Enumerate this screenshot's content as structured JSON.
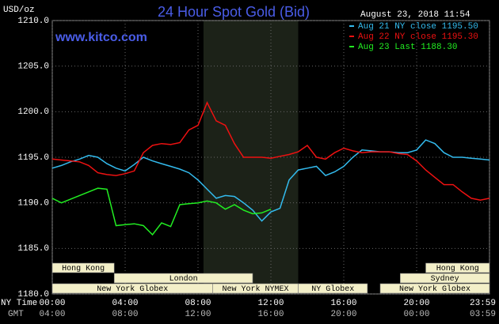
{
  "chart_data": {
    "type": "line",
    "title": "24 Hour Spot Gold (Bid)",
    "source": "www.kitco.com",
    "timestamp": "August 23, 2018 11:54",
    "y_label": "USD/oz",
    "x_label": "NY Time",
    "x2_label": "GMT",
    "x": [
      0,
      0.5,
      1,
      1.5,
      2,
      2.5,
      3,
      3.5,
      4,
      4.5,
      5,
      5.5,
      6,
      6.5,
      7,
      7.5,
      8,
      8.5,
      9,
      9.5,
      10,
      10.5,
      11,
      11.5,
      12,
      12.5,
      13,
      13.5,
      14,
      14.5,
      15,
      15.5,
      16,
      16.5,
      17,
      17.5,
      18,
      18.5,
      19,
      19.5,
      20,
      20.5,
      21,
      21.5,
      22,
      22.5,
      23,
      23.5,
      24
    ],
    "xlim": [
      0,
      24
    ],
    "xticks": [
      {
        "value": 0,
        "label": "00:00"
      },
      {
        "value": 4,
        "label": "04:00"
      },
      {
        "value": 8,
        "label": "08:00"
      },
      {
        "value": 12,
        "label": "12:00"
      },
      {
        "value": 16,
        "label": "16:00"
      },
      {
        "value": 20,
        "label": "20:00"
      },
      {
        "value": 24,
        "label": "23:59"
      }
    ],
    "x2ticks": [
      {
        "value": 0,
        "label": "04:00"
      },
      {
        "value": 4,
        "label": "08:00"
      },
      {
        "value": 8,
        "label": "12:00"
      },
      {
        "value": 12,
        "label": "16:00"
      },
      {
        "value": 16,
        "label": "20:00"
      },
      {
        "value": 20,
        "label": "00:00"
      },
      {
        "value": 24,
        "label": "03:59"
      }
    ],
    "ylim": [
      1180,
      1210
    ],
    "yticks": [
      {
        "value": 1180,
        "label": "1180.0"
      },
      {
        "value": 1185,
        "label": "1185.0"
      },
      {
        "value": 1190,
        "label": "1190.0"
      },
      {
        "value": 1195,
        "label": "1195.0"
      },
      {
        "value": 1200,
        "label": "1200.0"
      },
      {
        "value": 1205,
        "label": "1205.0"
      },
      {
        "value": 1210,
        "label": "1210.0"
      }
    ],
    "grid": true,
    "highlight": [
      8.3,
      13.5
    ],
    "sessions": [
      {
        "label": "Hong Kong",
        "start": 0,
        "end": 3.4
      },
      {
        "label": "London",
        "start": 3.4,
        "end": 11
      },
      {
        "label": "New York Globex",
        "start": 0,
        "end": 8.8
      },
      {
        "label": "New York NYMEX",
        "start": 8.8,
        "end": 13.5
      },
      {
        "label": "NY Globex",
        "start": 13.5,
        "end": 17.3
      },
      {
        "label": "Hong Kong",
        "start": 20.5,
        "end": 24
      },
      {
        "label": "Sydney",
        "start": 19.1,
        "end": 24
      },
      {
        "label": "New York Globex",
        "start": 18,
        "end": 24
      }
    ],
    "series": [
      {
        "name": "Aug 21 NY close 1195.50",
        "color": "#33bbee",
        "values": [
          1193.8,
          1194.1,
          1194.5,
          1194.8,
          1195.2,
          1195,
          1194.3,
          1193.8,
          1193.5,
          1194.2,
          1195,
          1194.6,
          1194.3,
          1194,
          1193.7,
          1193.3,
          1192.5,
          1191.5,
          1190.5,
          1190.8,
          1190.7,
          1190,
          1189.2,
          1188,
          1189,
          1189.4,
          1192.5,
          1193.6,
          1193.8,
          1194,
          1193,
          1193.4,
          1194,
          1195,
          1195.8,
          1195.7,
          1195.6,
          1195.6,
          1195.5,
          1195.5,
          1195.8,
          1196.9,
          1196.5,
          1195.5,
          1195,
          1195,
          1194.9,
          1194.8,
          1194.7
        ]
      },
      {
        "name": "Aug 22 NY close 1195.30",
        "color": "#ee1111",
        "values": [
          1194.8,
          1194.7,
          1194.6,
          1194.5,
          1194.1,
          1193.3,
          1193.1,
          1193,
          1193.2,
          1193.5,
          1195.5,
          1196.3,
          1196.5,
          1196.4,
          1196.6,
          1198,
          1198.5,
          1201,
          1199,
          1198.5,
          1196.5,
          1195,
          1195,
          1195,
          1194.9,
          1195.1,
          1195.3,
          1195.6,
          1196.3,
          1195,
          1194.8,
          1195.5,
          1196,
          1195.7,
          1195.5,
          1195.6,
          1195.6,
          1195.6,
          1195.4,
          1195.3,
          1194.6,
          1193.6,
          1192.8,
          1192,
          1192,
          1191.2,
          1190.5,
          1190.3,
          1190.5
        ]
      },
      {
        "name": "Aug 23 Last 1188.30",
        "color": "#22ee22",
        "values": [
          1190.5,
          1190,
          1190.4,
          1190.8,
          1191.2,
          1191.6,
          1191.5,
          1187.5,
          1187.6,
          1187.7,
          1187.5,
          1186.5,
          1187.8,
          1187.4,
          1189.8,
          1189.9,
          1190,
          1190.2,
          1190,
          1189.3,
          1189.8,
          1189.2,
          1188.8,
          1188.9,
          1189.3,
          null,
          null,
          null,
          null,
          null,
          null,
          null,
          null,
          null,
          null,
          null,
          null,
          null,
          null,
          null,
          null,
          null,
          null,
          null,
          null,
          null,
          null,
          null,
          null
        ]
      }
    ]
  }
}
